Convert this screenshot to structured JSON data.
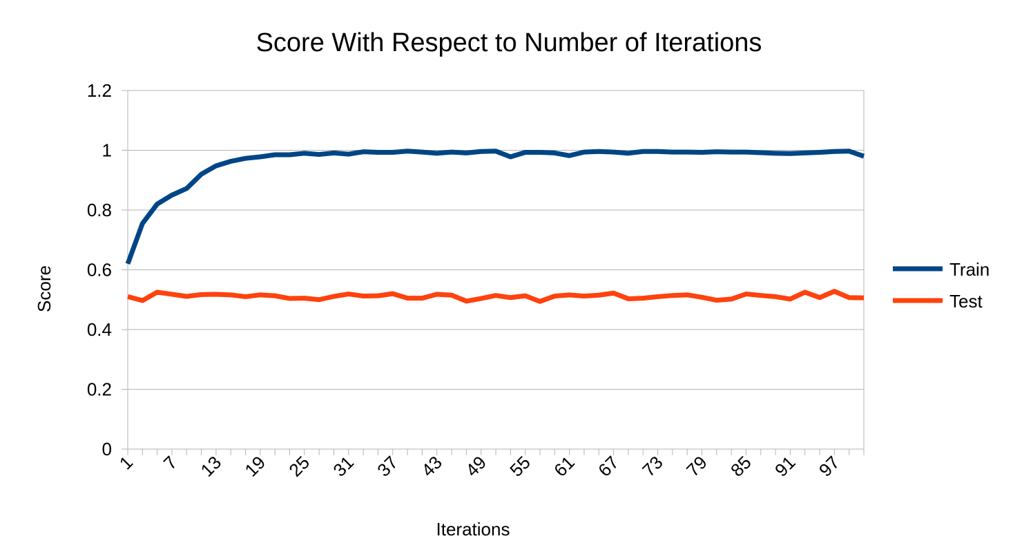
{
  "chart_data": {
    "type": "line",
    "title": "Score With Respect to Number of Iterations",
    "xlabel": "Iterations",
    "ylabel": "Score",
    "ylim": [
      0,
      1.2
    ],
    "y_ticks": [
      "0",
      "0.2",
      "0.4",
      "0.6",
      "0.8",
      "1",
      "1.2"
    ],
    "x_tick_labels": [
      "1",
      "7",
      "13",
      "19",
      "25",
      "31",
      "37",
      "43",
      "49",
      "55",
      "61",
      "67",
      "73",
      "79",
      "85",
      "91",
      "97"
    ],
    "x": [
      1,
      3,
      5,
      7,
      9,
      11,
      13,
      15,
      17,
      19,
      21,
      23,
      25,
      27,
      29,
      31,
      33,
      35,
      37,
      39,
      41,
      43,
      45,
      47,
      49,
      51,
      53,
      55,
      57,
      59,
      61,
      63,
      65,
      67,
      69,
      71,
      73,
      75,
      77,
      79,
      81,
      83,
      85,
      87,
      89,
      91,
      93,
      95,
      97,
      99,
      101
    ],
    "grid": true,
    "legend_position": "right",
    "series": [
      {
        "name": "Train",
        "color": "#004586",
        "values": [
          0.62,
          0.755,
          0.82,
          0.85,
          0.872,
          0.92,
          0.948,
          0.963,
          0.973,
          0.978,
          0.985,
          0.985,
          0.99,
          0.986,
          0.991,
          0.987,
          0.995,
          0.993,
          0.993,
          0.997,
          0.994,
          0.99,
          0.994,
          0.991,
          0.996,
          0.997,
          0.978,
          0.993,
          0.993,
          0.991,
          0.982,
          0.994,
          0.996,
          0.994,
          0.99,
          0.996,
          0.996,
          0.994,
          0.994,
          0.993,
          0.995,
          0.994,
          0.994,
          0.992,
          0.99,
          0.989,
          0.991,
          0.993,
          0.996,
          0.997,
          0.98
        ]
      },
      {
        "name": "Test",
        "color": "#ff420e",
        "values": [
          0.51,
          0.497,
          0.525,
          0.518,
          0.511,
          0.517,
          0.518,
          0.516,
          0.51,
          0.516,
          0.513,
          0.504,
          0.505,
          0.5,
          0.511,
          0.519,
          0.512,
          0.513,
          0.52,
          0.505,
          0.505,
          0.518,
          0.515,
          0.495,
          0.504,
          0.514,
          0.507,
          0.513,
          0.494,
          0.512,
          0.516,
          0.512,
          0.515,
          0.522,
          0.503,
          0.505,
          0.51,
          0.514,
          0.516,
          0.508,
          0.498,
          0.502,
          0.519,
          0.514,
          0.51,
          0.502,
          0.525,
          0.507,
          0.528,
          0.507,
          0.506
        ]
      }
    ]
  }
}
